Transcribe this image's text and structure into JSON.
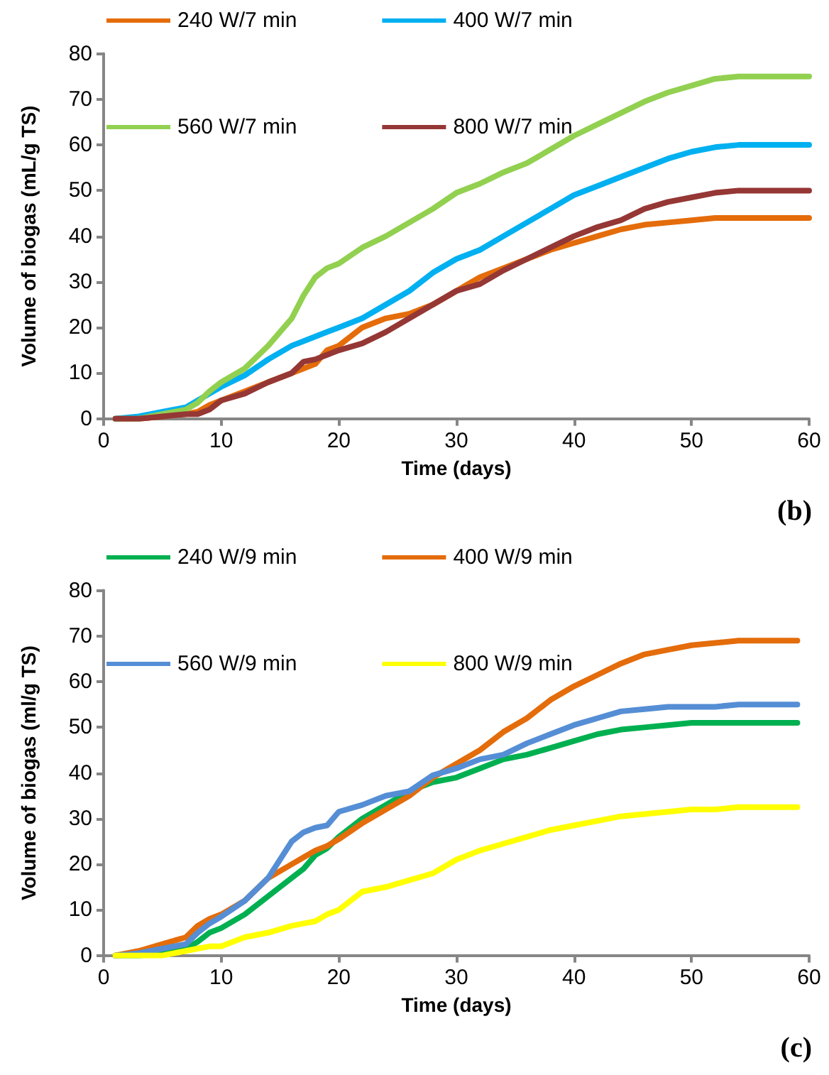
{
  "chart_data": [
    {
      "type": "line",
      "xlabel": "Time (days)",
      "ylabel": "Volume of biogas (mL/g TS)",
      "annotations": [
        "(b)"
      ],
      "legend": "top",
      "grid": false,
      "marker": "none",
      "line_style": "solid",
      "x": [
        1,
        3,
        5,
        7,
        8,
        9,
        10,
        12,
        14,
        16,
        17,
        18,
        19,
        20,
        22,
        24,
        26,
        28,
        30,
        32,
        34,
        36,
        38,
        40,
        42,
        44,
        46,
        48,
        50,
        52,
        54,
        56,
        58,
        60
      ],
      "xlim": [
        0,
        60
      ],
      "xticks": [
        0,
        10,
        20,
        30,
        40,
        50,
        60
      ],
      "ylim": [
        0,
        80
      ],
      "yticks": [
        0,
        10,
        20,
        30,
        40,
        50,
        60,
        70,
        80
      ],
      "series": [
        {
          "name": "240 W/7 min",
          "color": "#e46c0a",
          "values": [
            0,
            0,
            0.5,
            1,
            1.5,
            3,
            4,
            6,
            8,
            10,
            11,
            12,
            15,
            16,
            20,
            22,
            23,
            25,
            28,
            31,
            33,
            35,
            37,
            38.5,
            40,
            41.5,
            42.5,
            43,
            43.5,
            44,
            44,
            44,
            44,
            44
          ]
        },
        {
          "name": "400 W/7 min",
          "color": "#00b0f0",
          "values": [
            0,
            0.5,
            1.5,
            2.5,
            4,
            5.5,
            7,
            9.5,
            13,
            16,
            17,
            18,
            19,
            20,
            22,
            25,
            28,
            32,
            35,
            37,
            40,
            43,
            46,
            49,
            51,
            53,
            55,
            57,
            58.5,
            59.5,
            60,
            60,
            60,
            60
          ]
        },
        {
          "name": "560 W/7 min",
          "color": "#92d050",
          "values": [
            0,
            0,
            1,
            2,
            3.5,
            6,
            8,
            11,
            16,
            22,
            27,
            31,
            33,
            34,
            37.5,
            40,
            43,
            46,
            49.5,
            51.5,
            54,
            56,
            59,
            62,
            64.5,
            67,
            69.5,
            71.5,
            73,
            74.5,
            75,
            75,
            75,
            75
          ]
        },
        {
          "name": "800 W/7 min",
          "color": "#953735",
          "values": [
            0,
            0,
            0.5,
            1,
            1,
            2,
            4,
            5.5,
            8,
            10,
            12.5,
            13,
            14,
            15,
            16.5,
            19,
            22,
            25,
            28,
            29.5,
            32.5,
            35,
            37.5,
            40,
            42,
            43.5,
            46,
            47.5,
            48.5,
            49.5,
            50,
            50,
            50,
            50
          ]
        }
      ]
    },
    {
      "type": "line",
      "xlabel": "Time (days)",
      "ylabel": "Volume of biogas (ml/g TS)",
      "annotations": [
        "(c)"
      ],
      "legend": "top",
      "grid": false,
      "marker": "none",
      "line_style": "solid",
      "x": [
        1,
        3,
        5,
        7,
        8,
        9,
        10,
        12,
        14,
        16,
        17,
        18,
        19,
        20,
        22,
        24,
        26,
        28,
        30,
        32,
        34,
        36,
        38,
        40,
        42,
        44,
        46,
        48,
        50,
        52,
        54,
        56,
        59
      ],
      "xlim": [
        0,
        60
      ],
      "xticks": [
        0,
        10,
        20,
        30,
        40,
        50,
        60
      ],
      "ylim": [
        0,
        80
      ],
      "yticks": [
        0,
        10,
        20,
        30,
        40,
        50,
        60,
        70,
        80
      ],
      "series": [
        {
          "name": "240 W/9 min",
          "color": "#00b050",
          "values": [
            0,
            0,
            0.5,
            1.5,
            3,
            5,
            6,
            9,
            13,
            17,
            19,
            22,
            23.5,
            26,
            30,
            33,
            36,
            38,
            39,
            41,
            43,
            44,
            45.5,
            47,
            48.5,
            49.5,
            50,
            50.5,
            51,
            51,
            51,
            51,
            51
          ]
        },
        {
          "name": "400 W/9 min",
          "color": "#e46c0a",
          "values": [
            0,
            1,
            2.5,
            4,
            6.5,
            8,
            9,
            12,
            17,
            20,
            21.5,
            23,
            24,
            25.5,
            29,
            32,
            35,
            39,
            42,
            45,
            49,
            52,
            56,
            59,
            61.5,
            64,
            66,
            67,
            68,
            68.5,
            69,
            69,
            69
          ]
        },
        {
          "name": "560 W/9 min",
          "color": "#558ed5",
          "values": [
            0,
            0.5,
            1.5,
            2.5,
            5,
            7,
            8.5,
            12,
            17,
            25,
            27,
            28,
            28.5,
            31.5,
            33,
            35,
            36,
            39.5,
            41,
            43,
            44,
            46.5,
            48.5,
            50.5,
            52,
            53.5,
            54,
            54.5,
            54.5,
            54.5,
            55,
            55,
            55
          ]
        },
        {
          "name": "800 W/9 min",
          "color": "#ffff00",
          "values": [
            0,
            0,
            0,
            1,
            1.5,
            2,
            2,
            4,
            5,
            6.5,
            7,
            7.5,
            9,
            10,
            14,
            15,
            16.5,
            18,
            21,
            23,
            24.5,
            26,
            27.5,
            28.5,
            29.5,
            30.5,
            31,
            31.5,
            32,
            32,
            32.5,
            32.5,
            32.5
          ]
        }
      ]
    }
  ]
}
